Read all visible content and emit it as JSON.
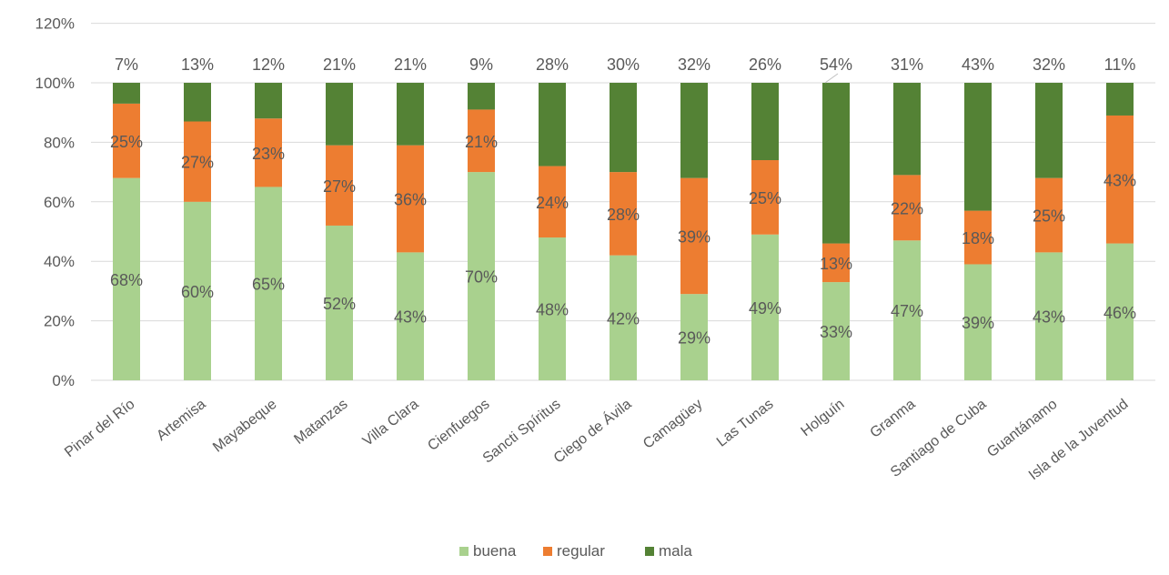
{
  "chart_data": {
    "type": "bar",
    "stacked": true,
    "categories": [
      "Pinar del Río",
      "Artemisa",
      "Mayabeque",
      "Matanzas",
      "Villa Clara",
      "Cienfuegos",
      "Sancti Spíritus",
      "Ciego de Ávila",
      "Camagüey",
      "Las Tunas",
      "Holguín",
      "Granma",
      "Santiago de Cuba",
      "Guantánamo",
      "Isla de la Juventud"
    ],
    "series": [
      {
        "name": "buena",
        "color": "#a9d18e",
        "values": [
          68,
          60,
          65,
          52,
          43,
          70,
          48,
          42,
          29,
          49,
          33,
          47,
          39,
          43,
          46
        ],
        "labels": [
          "68%",
          "60%",
          "65%",
          "52%",
          "43%",
          "70%",
          "48%",
          "42%",
          "29%",
          "49%",
          "33%",
          "47%",
          "39%",
          "43%",
          "46%"
        ]
      },
      {
        "name": "regular",
        "color": "#ed7d31",
        "values": [
          25,
          27,
          23,
          27,
          36,
          21,
          24,
          28,
          39,
          25,
          13,
          22,
          18,
          25,
          43
        ],
        "labels": [
          "25%",
          "27%",
          "23%",
          "27%",
          "36%",
          "21%",
          "24%",
          "28%",
          "39%",
          "25%",
          "13%",
          "22%",
          "18%",
          "25%",
          "43%"
        ]
      },
      {
        "name": "mala",
        "color": "#548235",
        "values": [
          7,
          13,
          12,
          21,
          21,
          9,
          28,
          30,
          32,
          26,
          54,
          31,
          43,
          32,
          11
        ],
        "labels": [
          "7%",
          "13%",
          "12%",
          "21%",
          "21%",
          "9%",
          "28%",
          "30%",
          "32%",
          "26%",
          "54%",
          "31%",
          "43%",
          "32%",
          "11%"
        ]
      }
    ],
    "y_ticks": [
      "0%",
      "20%",
      "40%",
      "60%",
      "80%",
      "100%",
      "120%"
    ],
    "ylim": [
      0,
      120
    ],
    "grid": true,
    "legend_position": "bottom",
    "title": "",
    "xlabel": "",
    "ylabel": ""
  }
}
